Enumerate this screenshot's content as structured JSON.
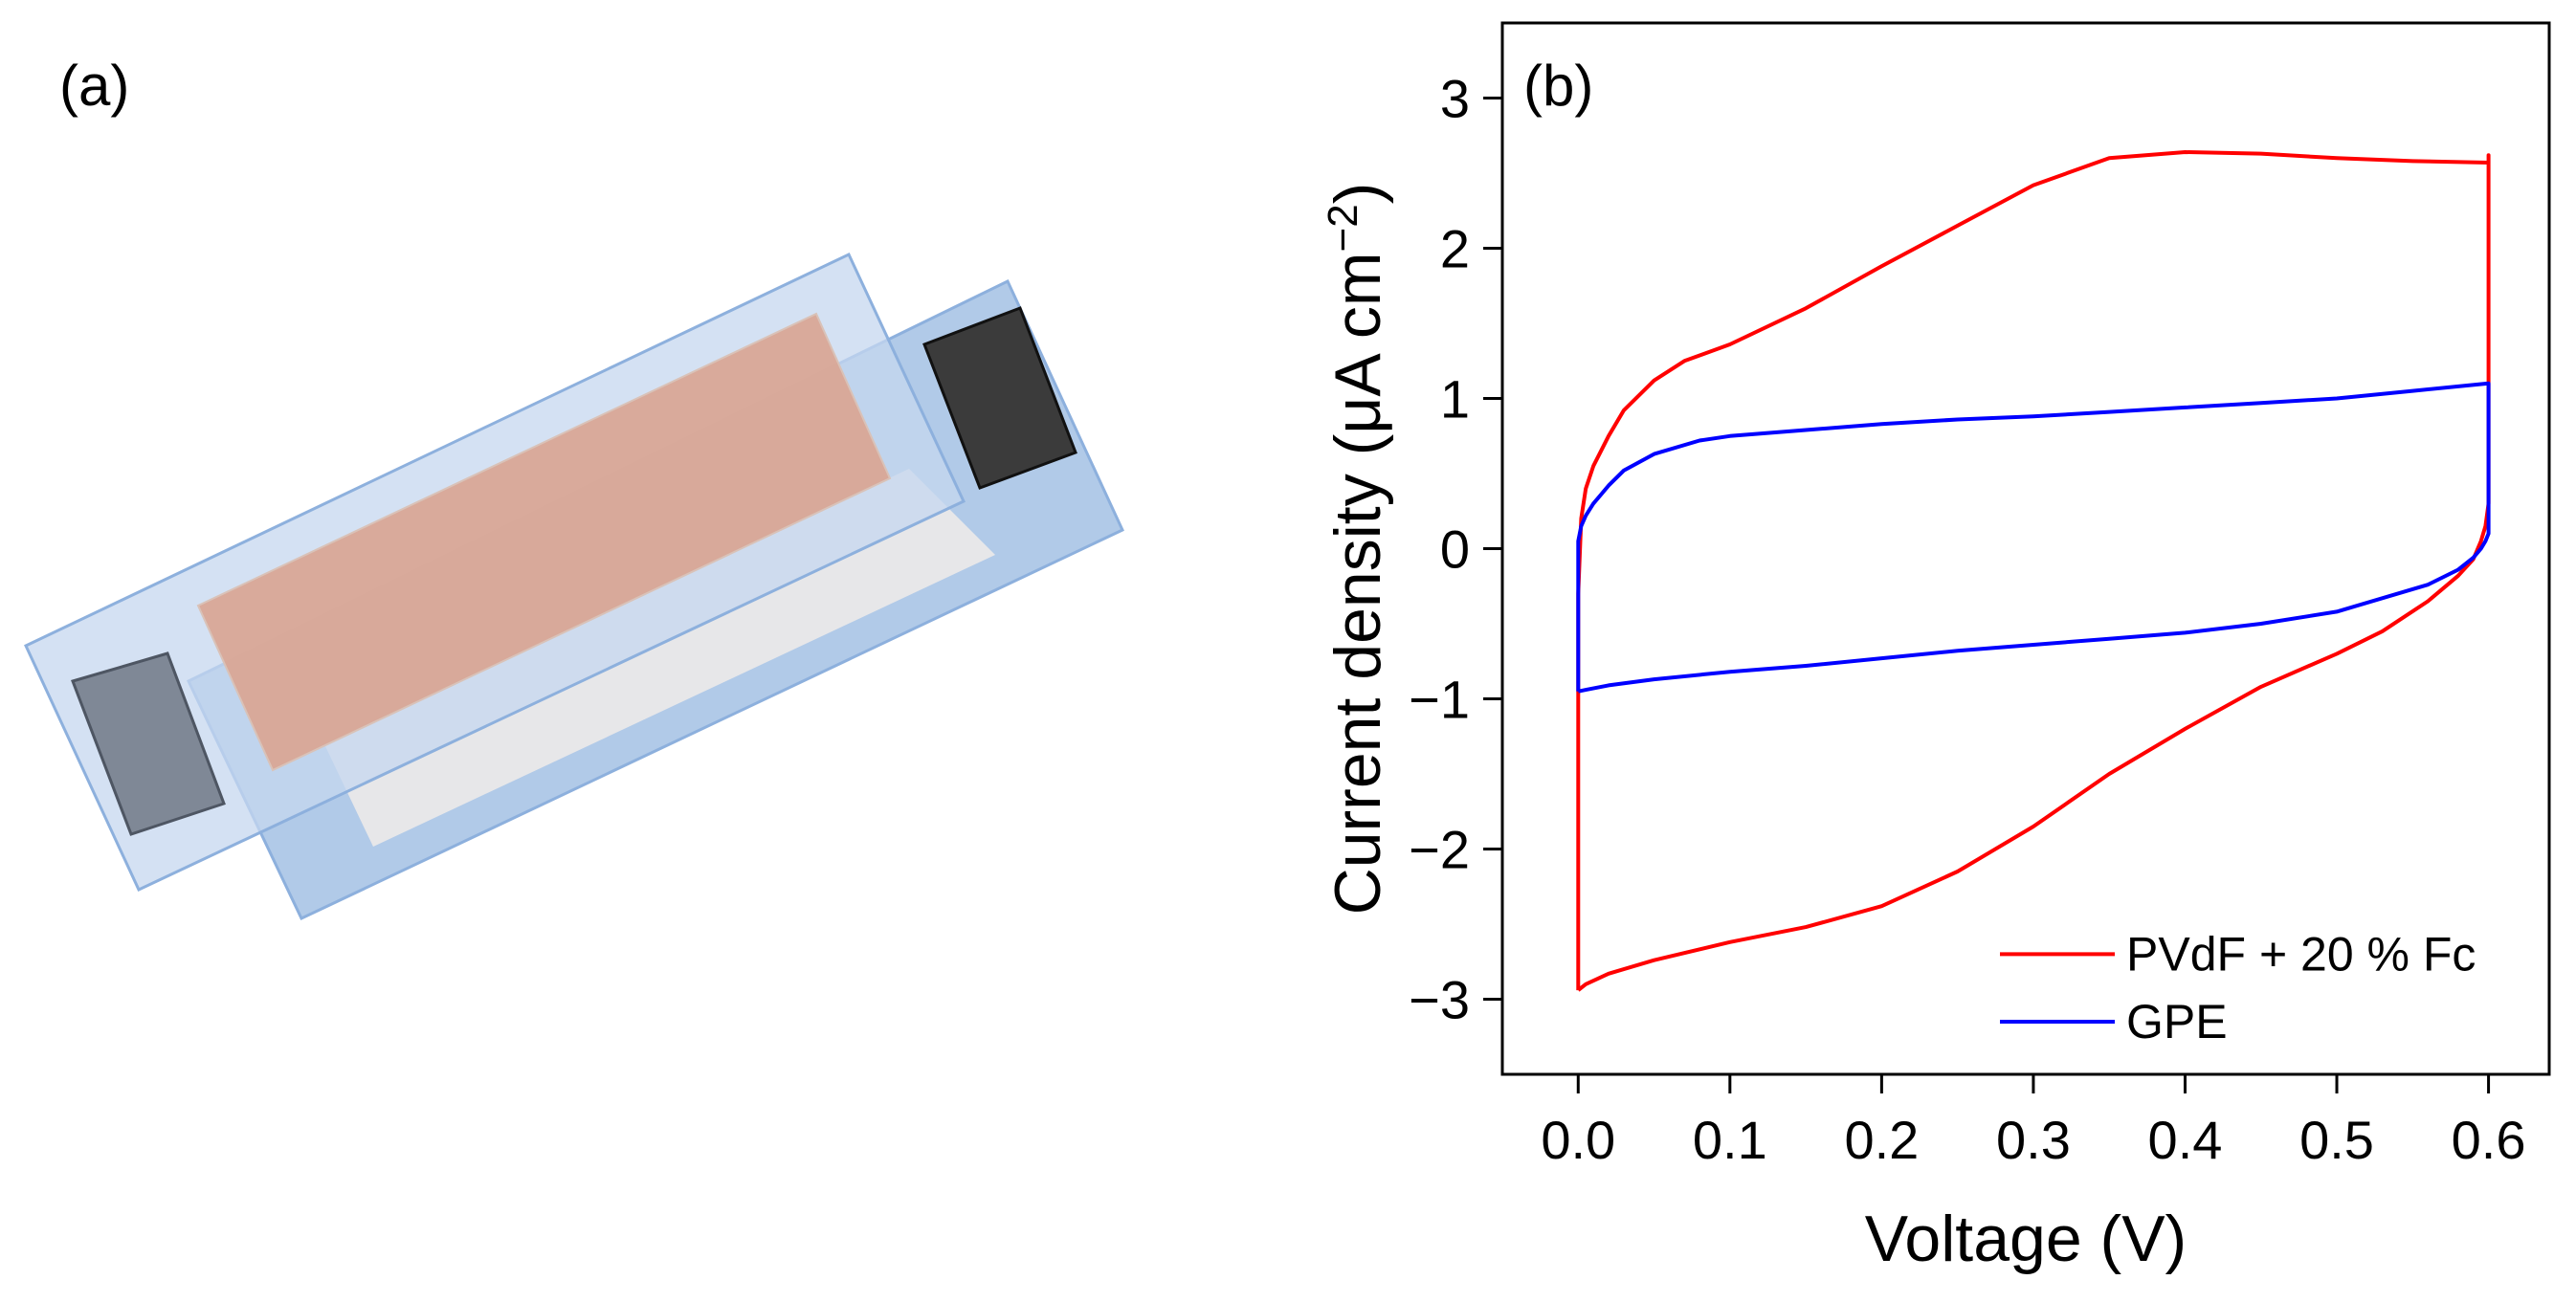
{
  "panels": {
    "a_label": "(a)",
    "b_label": "(b)"
  },
  "device_schematic": {
    "colors": {
      "top_substrate": "#c6d7ef",
      "bottom_substrate": "#a9c4e6",
      "substrate_border": "#8db0dd",
      "active_layer": "#d9a796",
      "separator": "#e7e7e9",
      "left_contact": "#7f8896",
      "right_contact": "#3b3b3b"
    }
  },
  "chart_data": {
    "type": "line",
    "xlabel": "Voltage (V)",
    "ylabel_main": "Current density (μA cm",
    "ylabel_sup": "−2",
    "ylabel_close": ")",
    "xlim": [
      -0.05,
      0.64
    ],
    "ylim": [
      -3.5,
      3.5
    ],
    "x_ticks": [
      0.0,
      0.1,
      0.2,
      0.3,
      0.4,
      0.5,
      0.6
    ],
    "x_tick_labels": [
      "0.0",
      "0.1",
      "0.2",
      "0.3",
      "0.4",
      "0.5",
      "0.6"
    ],
    "y_ticks": [
      -3,
      -2,
      -1,
      0,
      1,
      2,
      3
    ],
    "y_tick_labels": [
      "−3",
      "−2",
      "−1",
      "0",
      "1",
      "2",
      "3"
    ],
    "grid": false,
    "legend_position": "bottom-right",
    "series": [
      {
        "name": "PVdF + 20 % Fc",
        "color": "#ff0000",
        "x": [
          0.0,
          0.0,
          0.002,
          0.005,
          0.01,
          0.02,
          0.03,
          0.05,
          0.07,
          0.1,
          0.15,
          0.2,
          0.25,
          0.3,
          0.35,
          0.4,
          0.45,
          0.5,
          0.55,
          0.6,
          0.6,
          0.6,
          0.598,
          0.595,
          0.59,
          0.58,
          0.56,
          0.53,
          0.5,
          0.45,
          0.4,
          0.35,
          0.3,
          0.25,
          0.2,
          0.15,
          0.1,
          0.05,
          0.02,
          0.005,
          0.0,
          0.0
        ],
        "y": [
          -2.94,
          -0.3,
          0.2,
          0.4,
          0.55,
          0.75,
          0.92,
          1.12,
          1.25,
          1.36,
          1.6,
          1.88,
          2.15,
          2.42,
          2.6,
          2.64,
          2.63,
          2.6,
          2.58,
          2.57,
          2.62,
          0.3,
          0.15,
          0.05,
          -0.07,
          -0.18,
          -0.35,
          -0.55,
          -0.7,
          -0.92,
          -1.2,
          -1.5,
          -1.85,
          -2.15,
          -2.38,
          -2.52,
          -2.62,
          -2.74,
          -2.83,
          -2.9,
          -2.94,
          -2.94
        ]
      },
      {
        "name": "GPE",
        "color": "#0000ff",
        "x": [
          0.0,
          0.0,
          0.002,
          0.005,
          0.01,
          0.015,
          0.02,
          0.03,
          0.05,
          0.08,
          0.1,
          0.15,
          0.2,
          0.25,
          0.3,
          0.35,
          0.4,
          0.45,
          0.5,
          0.55,
          0.6,
          0.6,
          0.6,
          0.598,
          0.595,
          0.59,
          0.58,
          0.56,
          0.5,
          0.45,
          0.4,
          0.35,
          0.3,
          0.25,
          0.2,
          0.15,
          0.1,
          0.05,
          0.02,
          0.005,
          0.0,
          0.0
        ],
        "y": [
          -0.95,
          0.05,
          0.15,
          0.22,
          0.3,
          0.36,
          0.42,
          0.52,
          0.63,
          0.72,
          0.75,
          0.79,
          0.83,
          0.86,
          0.88,
          0.91,
          0.94,
          0.97,
          1.0,
          1.05,
          1.1,
          0.35,
          0.1,
          0.05,
          0.0,
          -0.06,
          -0.14,
          -0.24,
          -0.42,
          -0.5,
          -0.56,
          -0.6,
          -0.64,
          -0.68,
          -0.73,
          -0.78,
          -0.82,
          -0.87,
          -0.91,
          -0.94,
          -0.95,
          -0.95
        ]
      }
    ]
  }
}
